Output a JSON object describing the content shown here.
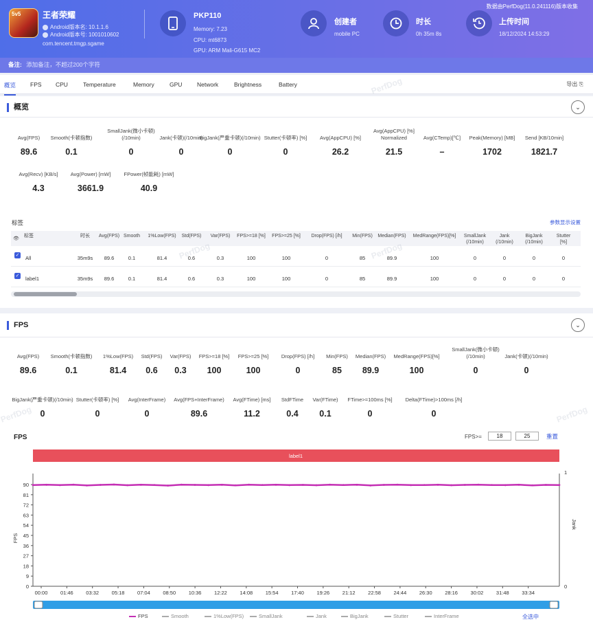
{
  "header": {
    "game_icon_text": "5v5",
    "game_name": "王者荣耀",
    "android_version": "Android版本名: 10.1.1.6",
    "android_code": "Android版本号: 1001010602",
    "package": "com.tencent.tmgp.sgame",
    "device_name": "PKP110",
    "memory": "Memory: 7.23",
    "cpu": "CPU: mt6873",
    "gpu": "GPU: ARM Mali-G615 MC2",
    "creator_label": "创建者",
    "creator_value": "mobile PC",
    "duration_label": "时长",
    "duration_value": "0h 35m 8s",
    "upload_label": "上传时间",
    "upload_value": "18/12/2024 14:53:29",
    "source_note": "数据由PerfDog(11.0.241116)版本收集",
    "note_label": "备注:",
    "note_placeholder": "添加备注，不超过200个字符"
  },
  "tabs": [
    "概览",
    "FPS",
    "CPU",
    "Temperature",
    "Memory",
    "GPU",
    "Network",
    "Brightness",
    "Battery"
  ],
  "export_label": "导出",
  "overview": {
    "title": "概览",
    "metrics_row1": [
      {
        "label": "Avg(FPS)",
        "value": "89.6"
      },
      {
        "label": "Smooth(卡顿指数)",
        "value": "0.1"
      },
      {
        "label": "SmallJank(微小卡顿)(/10min)",
        "value": "0"
      },
      {
        "label": "Jank(卡顿)(/10min)",
        "value": "0"
      },
      {
        "label": "BigJank(严重卡顿)(/10min)",
        "value": "0"
      },
      {
        "label": "Stutter(卡顿率) [%]",
        "value": "0"
      },
      {
        "label": "Avg(AppCPU) [%]",
        "value": "26.2"
      },
      {
        "label": "Avg(AppCPU) [%] Normalized",
        "value": "21.5"
      },
      {
        "label": "Avg(CTemp)[℃]",
        "value": "–"
      },
      {
        "label": "Peak(Memory) [MB]",
        "value": "1702"
      },
      {
        "label": "Send [KB/10min]",
        "value": "1821.7"
      }
    ],
    "metrics_row2": [
      {
        "label": "Avg(Recv) [KB/s]",
        "value": "4.3"
      },
      {
        "label": "Avg(Power) [mW]",
        "value": "3661.9"
      },
      {
        "label": "FPower(帧能耗) [mW]",
        "value": "40.9"
      }
    ],
    "table_title": "标签",
    "table_link": "参数显示设置",
    "columns": [
      "标签",
      "时长",
      "Avg(FPS)",
      "Smooth",
      "1%Low(FPS)",
      "Std(FPS)",
      "Var(FPS)",
      "FPS>=18 [%]",
      "FPS>=25 [%]",
      "Drop(FPS) [/h]",
      "Min(FPS)",
      "Median(FPS)",
      "MedRange(FPS)[%]",
      "SmallJank (/10min)",
      "Jank (/10min)",
      "BigJank (/10min)",
      "Stutter [%]"
    ],
    "rows": [
      [
        "All",
        "35m9s",
        "89.6",
        "0.1",
        "81.4",
        "0.6",
        "0.3",
        "100",
        "100",
        "0",
        "85",
        "89.9",
        "100",
        "0",
        "0",
        "0",
        "0"
      ],
      [
        "label1",
        "35m9s",
        "89.6",
        "0.1",
        "81.4",
        "0.6",
        "0.3",
        "100",
        "100",
        "0",
        "85",
        "89.9",
        "100",
        "0",
        "0",
        "0",
        "0"
      ]
    ]
  },
  "fps_section": {
    "title": "FPS",
    "metrics_row1": [
      {
        "label": "Avg(FPS)",
        "value": "89.6"
      },
      {
        "label": "Smooth(卡顿指数)",
        "value": "0.1"
      },
      {
        "label": "1%Low(FPS)",
        "value": "81.4"
      },
      {
        "label": "Std(FPS)",
        "value": "0.6"
      },
      {
        "label": "Var(FPS)",
        "value": "0.3"
      },
      {
        "label": "FPS>=18 [%]",
        "value": "100"
      },
      {
        "label": "FPS>=25 [%]",
        "value": "100"
      },
      {
        "label": "Drop(FPS) [/h]",
        "value": "0"
      },
      {
        "label": "Min(FPS)",
        "value": "85"
      },
      {
        "label": "Median(FPS)",
        "value": "89.9"
      },
      {
        "label": "MedRange(FPS)[%]",
        "value": "100"
      },
      {
        "label": "SmallJank(微小卡顿)(/10min)",
        "value": "0"
      },
      {
        "label": "Jank(卡顿)(/10min)",
        "value": "0"
      }
    ],
    "metrics_row2": [
      {
        "label": "BigJank(严重卡顿)(/10min)",
        "value": "0"
      },
      {
        "label": "Stutter(卡顿率) [%]",
        "value": "0"
      },
      {
        "label": "Avg(InterFrame)",
        "value": "0"
      },
      {
        "label": "Avg(FPS+InterFrame)",
        "value": "89.6"
      },
      {
        "label": "Avg(FTime) [ms]",
        "value": "11.2"
      },
      {
        "label": "StdFTime",
        "value": "0.4"
      },
      {
        "label": "Var(FTime)",
        "value": "0.1"
      },
      {
        "label": "FTime>=100ms [%]",
        "value": "0"
      },
      {
        "label": "Delta(FTime)>100ms [/h]",
        "value": "0"
      }
    ],
    "chart_title": "FPS",
    "fps_threshold_label": "FPS>=",
    "fps_threshold_1": "18",
    "fps_threshold_2": "25",
    "reset_label": "重置",
    "label_bar": "label1",
    "select_all": "全选中"
  },
  "colors": {
    "accent": "#3b5bdb",
    "label_bar": "#e8505b",
    "fps_line": "#c42fb4",
    "scrollbar": "#2f9ee6"
  },
  "chart_data": {
    "type": "line",
    "title": "FPS",
    "xlabel": "",
    "ylabel": "FPS",
    "y2label": "Jank",
    "ylim": [
      0,
      90
    ],
    "y2lim": [
      0,
      1
    ],
    "yticks": [
      0,
      9,
      18,
      27,
      36,
      45,
      54,
      63,
      72,
      81,
      90
    ],
    "y2ticks": [
      0,
      1
    ],
    "x_ticks": [
      "00:00",
      "01:46",
      "03:32",
      "05:18",
      "07:04",
      "08:50",
      "10:36",
      "12:22",
      "14:08",
      "15:54",
      "17:40",
      "19:26",
      "21:12",
      "22:58",
      "24:44",
      "26:30",
      "28:16",
      "30:02",
      "31:48",
      "33:34"
    ],
    "series": [
      {
        "name": "FPS",
        "color": "#c42fb4",
        "values": [
          89.6,
          89.8,
          89.5,
          89.9,
          89.2,
          89.7,
          90.0,
          89.4,
          89.8,
          89.6,
          89.1,
          89.9,
          89.7,
          89.5,
          89.8,
          89.3,
          89.9,
          89.6,
          89.8,
          89.5,
          89.7,
          89.4,
          89.9,
          89.6,
          89.8,
          89.2,
          89.7,
          89.9,
          89.5,
          89.6,
          89.8,
          89.4,
          89.7,
          89.9,
          89.6,
          89.5,
          89.8,
          89.3,
          89.7,
          89.6
        ]
      }
    ],
    "legend": [
      "FPS",
      "Smooth",
      "1%Low(FPS)",
      "SmallJank",
      "Jank",
      "BigJank",
      "Stutter",
      "InterFrame"
    ],
    "legend_placement": "bottom",
    "grid": false
  }
}
